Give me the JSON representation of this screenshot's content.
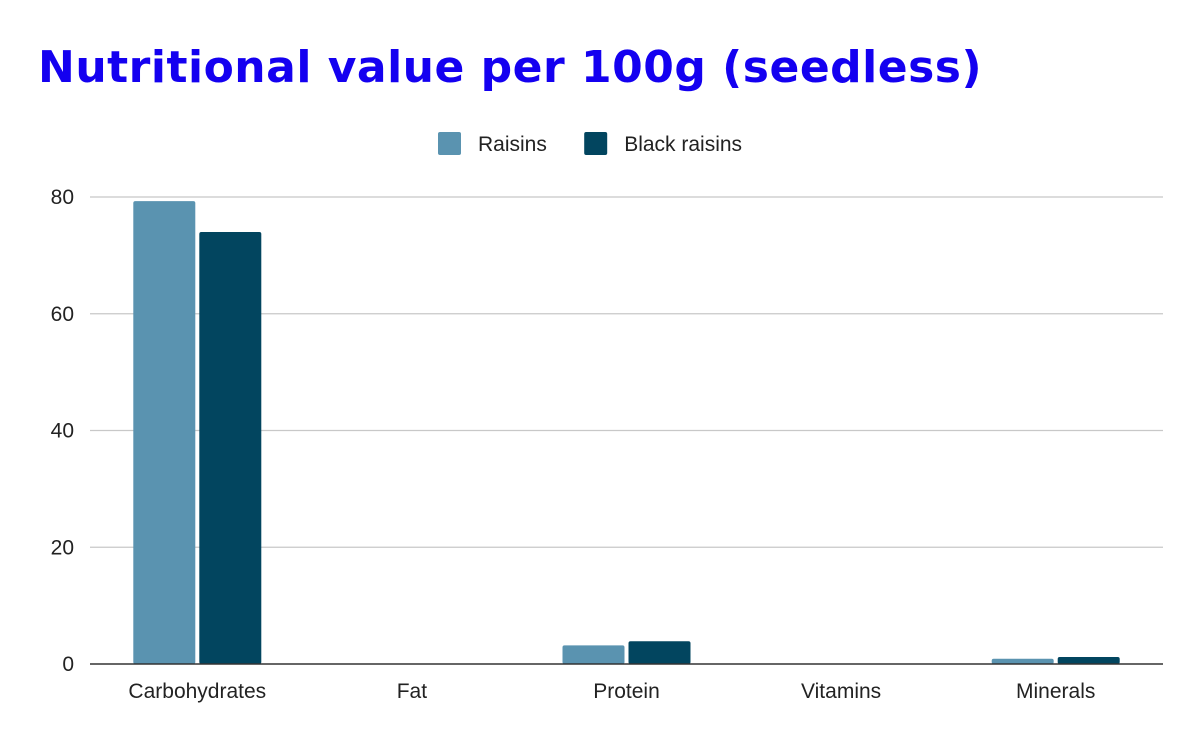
{
  "chart_data": {
    "type": "bar",
    "title": "Nutritional value per 100g (seedless)",
    "xlabel": "",
    "ylabel": "",
    "categories": [
      "Carbohydrates",
      "Fat",
      "Protein",
      "Vitamins",
      "Minerals"
    ],
    "series": [
      {
        "name": "Raisins",
        "values": [
          79.3,
          0,
          3.2,
          0,
          0.9
        ],
        "color": "#5a93b0"
      },
      {
        "name": "Black raisins",
        "values": [
          74,
          0,
          3.9,
          0,
          1.2
        ],
        "color": "#02455f"
      }
    ],
    "ylim": [
      0,
      80
    ],
    "yticks": [
      "0",
      "20",
      "40",
      "60",
      "80"
    ],
    "grid": true,
    "legend_position": "top-center"
  }
}
